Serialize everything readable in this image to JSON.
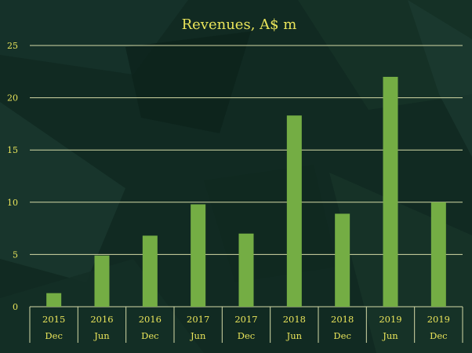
{
  "chart_data": {
    "type": "bar",
    "title": "Revenues, A$ m",
    "xlabel": "",
    "ylabel": "",
    "ylim": [
      0,
      25
    ],
    "yticks": [
      0,
      5,
      10,
      15,
      20,
      25
    ],
    "grid": true,
    "categories": [
      {
        "year": "2015",
        "half": "Dec"
      },
      {
        "year": "2016",
        "half": "Jun"
      },
      {
        "year": "2016",
        "half": "Dec"
      },
      {
        "year": "2017",
        "half": "Jun"
      },
      {
        "year": "2017",
        "half": "Dec"
      },
      {
        "year": "2018",
        "half": "Jun"
      },
      {
        "year": "2018",
        "half": "Dec"
      },
      {
        "year": "2019",
        "half": "Jun"
      },
      {
        "year": "2019",
        "half": "Dec"
      }
    ],
    "values": [
      1.3,
      4.9,
      6.8,
      9.8,
      7.0,
      18.3,
      8.9,
      22.0,
      10.0
    ]
  },
  "colors": {
    "background": "#112a22",
    "bar": "#74ad44",
    "grid": "#d4d9a6",
    "text": "#e9e45a"
  }
}
